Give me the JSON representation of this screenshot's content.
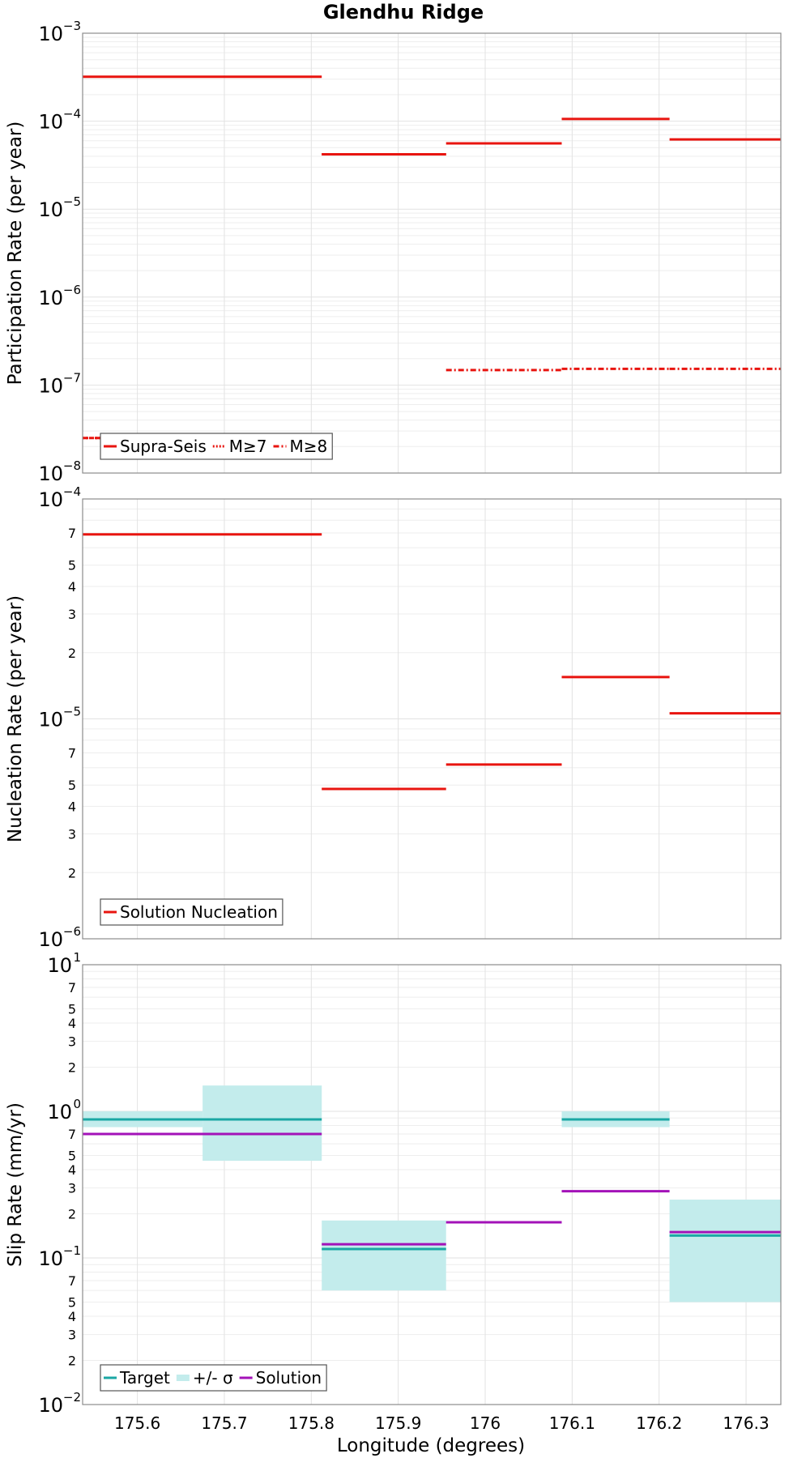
{
  "chart_data": {
    "type": "line",
    "title": "Glendhu Ridge",
    "xlabel": "Longitude (degrees)",
    "xlim": [
      175.537,
      176.34
    ],
    "xticks": [
      175.6,
      175.7,
      175.8,
      175.9,
      176,
      176.1,
      176.2,
      176.3
    ],
    "xtick_labels": [
      "175.6",
      "175.7",
      "175.8",
      "175.9",
      "176",
      "176.1",
      "176.2",
      "176.3"
    ],
    "panels": [
      {
        "ylabel": "Participation Rate (per year)",
        "yscale": "log",
        "ylim": [
          1e-08,
          0.001
        ],
        "legend": {
          "placement": "bottom-left",
          "entries": [
            "Supra-Seis",
            "M≥7",
            "M≥8"
          ]
        },
        "series": [
          {
            "name": "Supra-Seis",
            "color": "#e8140f",
            "style": "solid",
            "segments": [
              {
                "x": [
                  175.537,
                  175.812
                ],
                "y": 0.00032
              },
              {
                "x": [
                  175.812,
                  175.955
                ],
                "y": 4.2e-05
              },
              {
                "x": [
                  175.955,
                  176.088
                ],
                "y": 5.6e-05
              },
              {
                "x": [
                  176.088,
                  176.212
                ],
                "y": 0.000106
              },
              {
                "x": [
                  176.212,
                  176.34
                ],
                "y": 6.2e-05
              }
            ]
          },
          {
            "name": "M≥7",
            "color": "#e8140f",
            "style": "dotted",
            "segments": [
              {
                "x": [
                  175.537,
                  175.812
                ],
                "y": 2.5e-08
              },
              {
                "x": [
                  175.812,
                  175.955
                ],
                "y": 4.2e-05
              }
            ]
          },
          {
            "name": "M≥8",
            "color": "#e8140f",
            "style": "dashdot",
            "segments": [
              {
                "x": [
                  175.537,
                  175.812
                ],
                "y": 2.5e-08
              },
              {
                "x": [
                  175.955,
                  176.088
                ],
                "y": 1.48e-07
              },
              {
                "x": [
                  176.088,
                  176.212
                ],
                "y": 1.53e-07
              },
              {
                "x": [
                  176.212,
                  176.34
                ],
                "y": 1.53e-07
              }
            ]
          }
        ]
      },
      {
        "ylabel": "Nucleation Rate (per year)",
        "yscale": "log",
        "ylim": [
          1e-06,
          0.0001
        ],
        "legend": {
          "placement": "bottom-left",
          "entries": [
            "Solution Nucleation"
          ]
        },
        "series": [
          {
            "name": "Solution Nucleation",
            "color": "#e8140f",
            "style": "solid",
            "segments": [
              {
                "x": [
                  175.537,
                  175.812
                ],
                "y": 6.9e-05
              },
              {
                "x": [
                  175.812,
                  175.955
                ],
                "y": 4.8e-06
              },
              {
                "x": [
                  175.955,
                  176.088
                ],
                "y": 6.2e-06
              },
              {
                "x": [
                  176.088,
                  176.212
                ],
                "y": 1.55e-05
              },
              {
                "x": [
                  176.212,
                  176.34
                ],
                "y": 1.06e-05
              }
            ]
          }
        ]
      },
      {
        "ylabel": "Slip Rate (mm/yr)",
        "yscale": "log",
        "ylim": [
          0.01,
          10
        ],
        "legend": {
          "placement": "bottom-left",
          "entries": [
            "Target",
            "+/- σ",
            "Solution"
          ]
        },
        "bands": [
          {
            "x": [
              175.537,
              175.675
            ],
            "y": [
              0.78,
              1.0
            ]
          },
          {
            "x": [
              175.675,
              175.812
            ],
            "y": [
              0.46,
              1.5
            ]
          },
          {
            "x": [
              175.812,
              175.955
            ],
            "y": [
              0.06,
              0.18
            ]
          },
          {
            "x": [
              176.088,
              176.212
            ],
            "y": [
              0.78,
              1.0
            ]
          },
          {
            "x": [
              176.212,
              176.34
            ],
            "y": [
              0.05,
              0.25
            ]
          }
        ],
        "series": [
          {
            "name": "Target",
            "color": "#1ba7a4",
            "style": "solid",
            "segments": [
              {
                "x": [
                  175.537,
                  175.812
                ],
                "y": 0.88
              },
              {
                "x": [
                  175.812,
                  175.955
                ],
                "y": 0.115
              },
              {
                "x": [
                  176.088,
                  176.212
                ],
                "y": 0.88
              },
              {
                "x": [
                  176.212,
                  176.34
                ],
                "y": 0.142
              }
            ]
          },
          {
            "name": "Solution",
            "color": "#a312b8",
            "style": "solid",
            "segments": [
              {
                "x": [
                  175.537,
                  175.812
                ],
                "y": 0.7
              },
              {
                "x": [
                  175.812,
                  175.955
                ],
                "y": 0.124
              },
              {
                "x": [
                  175.955,
                  176.088
                ],
                "y": 0.175
              },
              {
                "x": [
                  176.088,
                  176.212
                ],
                "y": 0.285
              },
              {
                "x": [
                  176.212,
                  176.34
                ],
                "y": 0.15
              }
            ]
          }
        ]
      }
    ]
  }
}
